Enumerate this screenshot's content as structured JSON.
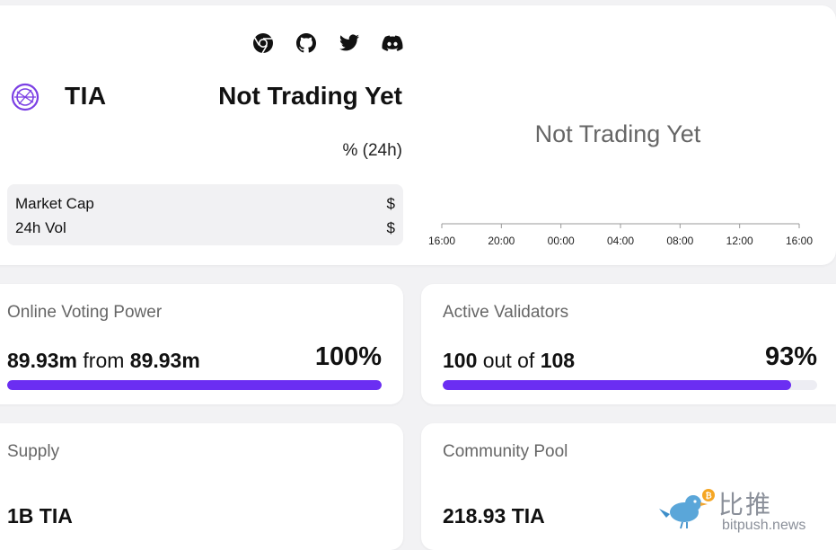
{
  "token": {
    "symbol": "TIA",
    "price": "Not Trading Yet",
    "change": "% (24h)"
  },
  "social_icons": [
    "chrome-icon",
    "github-icon",
    "twitter-icon",
    "discord-icon"
  ],
  "stats": {
    "market_cap_label": "Market Cap",
    "market_cap_value": "$",
    "vol_label": "24h Vol",
    "vol_value": "$"
  },
  "chart": {
    "message": "Not Trading Yet",
    "ticks": [
      "16:00",
      "20:00",
      "00:00",
      "04:00",
      "08:00",
      "12:00",
      "16:00"
    ]
  },
  "voting_power": {
    "label": "Online Voting Power",
    "online": "89.93m",
    "from_text": "from",
    "total": "89.93m",
    "percent_text": "100%",
    "percent": 100
  },
  "validators": {
    "label": "Active Validators",
    "active": "100",
    "out_of_text": "out of",
    "total": "108",
    "percent_text": "93%",
    "percent": 93
  },
  "supply": {
    "label": "Supply",
    "value": "1B TIA"
  },
  "community_pool": {
    "label": "Community Pool",
    "value": "218.93 TIA"
  },
  "watermark": {
    "cn": "比推",
    "en": "bitpush.news"
  },
  "colors": {
    "accent": "#6b2ef2",
    "bar_track": "#ededf3",
    "logo": "#7b3fe4"
  }
}
